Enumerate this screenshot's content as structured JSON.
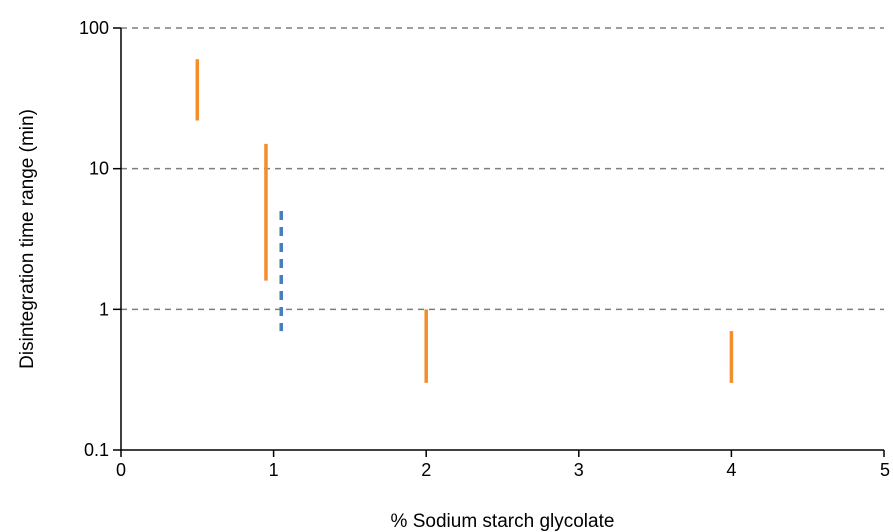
{
  "chart_data": {
    "type": "range",
    "xlabel": "% Sodium starch glycolate",
    "ylabel": "Disintegration time range (min)",
    "xlim": [
      0,
      5
    ],
    "ylim": [
      0.1,
      100
    ],
    "yscale": "log",
    "x_ticks": [
      "0",
      "1",
      "2",
      "3",
      "4",
      "5"
    ],
    "y_ticks": [
      "0.1",
      "1",
      "10",
      "100"
    ],
    "grid": "horizontal-dashed",
    "series": [
      {
        "style": "solid",
        "color": "#F28E2B",
        "ranges": [
          {
            "x": 0.5,
            "low": 22,
            "high": 60
          },
          {
            "x": 0.95,
            "low": 1.6,
            "high": 15
          },
          {
            "x": 2,
            "low": 0.3,
            "high": 1
          },
          {
            "x": 4,
            "low": 0.3,
            "high": 0.7
          }
        ]
      },
      {
        "style": "dashed",
        "color": "#4A7EBB",
        "ranges": [
          {
            "x": 1.05,
            "low": 0.7,
            "high": 5
          }
        ]
      }
    ]
  }
}
